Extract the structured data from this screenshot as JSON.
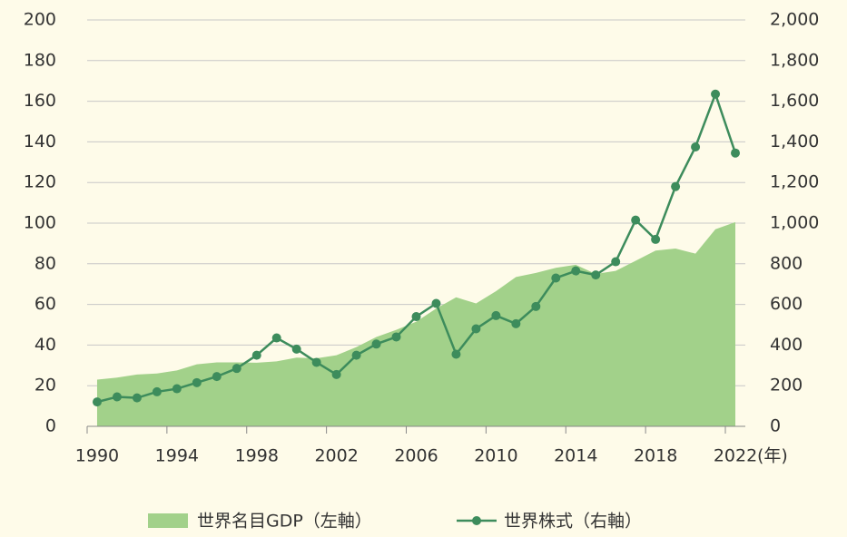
{
  "chart_data": {
    "type": "area-line",
    "x": [
      1990,
      1991,
      1992,
      1993,
      1994,
      1995,
      1996,
      1997,
      1998,
      1999,
      2000,
      2001,
      2002,
      2003,
      2004,
      2005,
      2006,
      2007,
      2008,
      2009,
      2010,
      2011,
      2012,
      2013,
      2014,
      2015,
      2016,
      2017,
      2018,
      2019,
      2020,
      2021,
      2022
    ],
    "xlim": [
      1989.5,
      2022.5
    ],
    "xticks": [
      1990,
      1994,
      1998,
      2002,
      2006,
      2010,
      2014,
      2018,
      2022
    ],
    "x_unit": "(年)",
    "ylim": [
      0,
      200
    ],
    "yticks": [
      0,
      20,
      40,
      60,
      80,
      100,
      120,
      140,
      160,
      180,
      200
    ],
    "y2lim": [
      0,
      2000
    ],
    "y2ticks": [
      0,
      {
        "value": 200,
        "label": "200"
      },
      {
        "value": 400,
        "label": "400"
      },
      {
        "value": 600,
        "label": "600"
      },
      {
        "value": 800,
        "label": "800"
      },
      {
        "value": 1000,
        "label": "1,000"
      },
      {
        "value": 1200,
        "label": "1,200"
      },
      {
        "value": 1400,
        "label": "1,400"
      },
      {
        "value": 1600,
        "label": "1,600"
      },
      {
        "value": 1800,
        "label": "1,800"
      },
      {
        "value": 2000,
        "label": "2,000"
      }
    ],
    "grid": true,
    "series": [
      {
        "name": "世界名目GDP（左軸）",
        "kind": "area",
        "color": "#a2d18a",
        "axis": "y",
        "values": [
          23,
          24,
          25.5,
          26,
          27.5,
          30.5,
          31.5,
          31.5,
          31.3,
          32,
          33.8,
          33.5,
          35,
          39,
          44,
          47.5,
          51.5,
          58,
          63.5,
          60.5,
          66.5,
          73.5,
          75.5,
          78,
          79.5,
          75,
          76.5,
          81.5,
          86.5,
          87.5,
          85,
          97,
          100.5
        ]
      },
      {
        "name": "世界株式（右軸）",
        "kind": "line",
        "color": "#3d8c5c",
        "axis": "y2",
        "values": [
          120,
          145,
          140,
          170,
          185,
          215,
          245,
          285,
          350,
          435,
          380,
          315,
          255,
          350,
          405,
          440,
          540,
          605,
          355,
          480,
          545,
          505,
          590,
          730,
          765,
          745,
          810,
          1015,
          920,
          1180,
          1375,
          1635,
          1345
        ]
      }
    ]
  }
}
